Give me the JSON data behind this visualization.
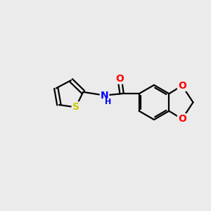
{
  "bg_color": "#ebebeb",
  "bond_color": "#000000",
  "bond_width": 1.6,
  "atom_colors": {
    "O": "#ff0000",
    "N": "#0000ff",
    "S": "#cccc00",
    "H": "#0000ff"
  },
  "font_size": 10,
  "fig_size": [
    3.0,
    3.0
  ],
  "dpi": 100,
  "xlim": [
    0,
    10
  ],
  "ylim": [
    0,
    10
  ]
}
